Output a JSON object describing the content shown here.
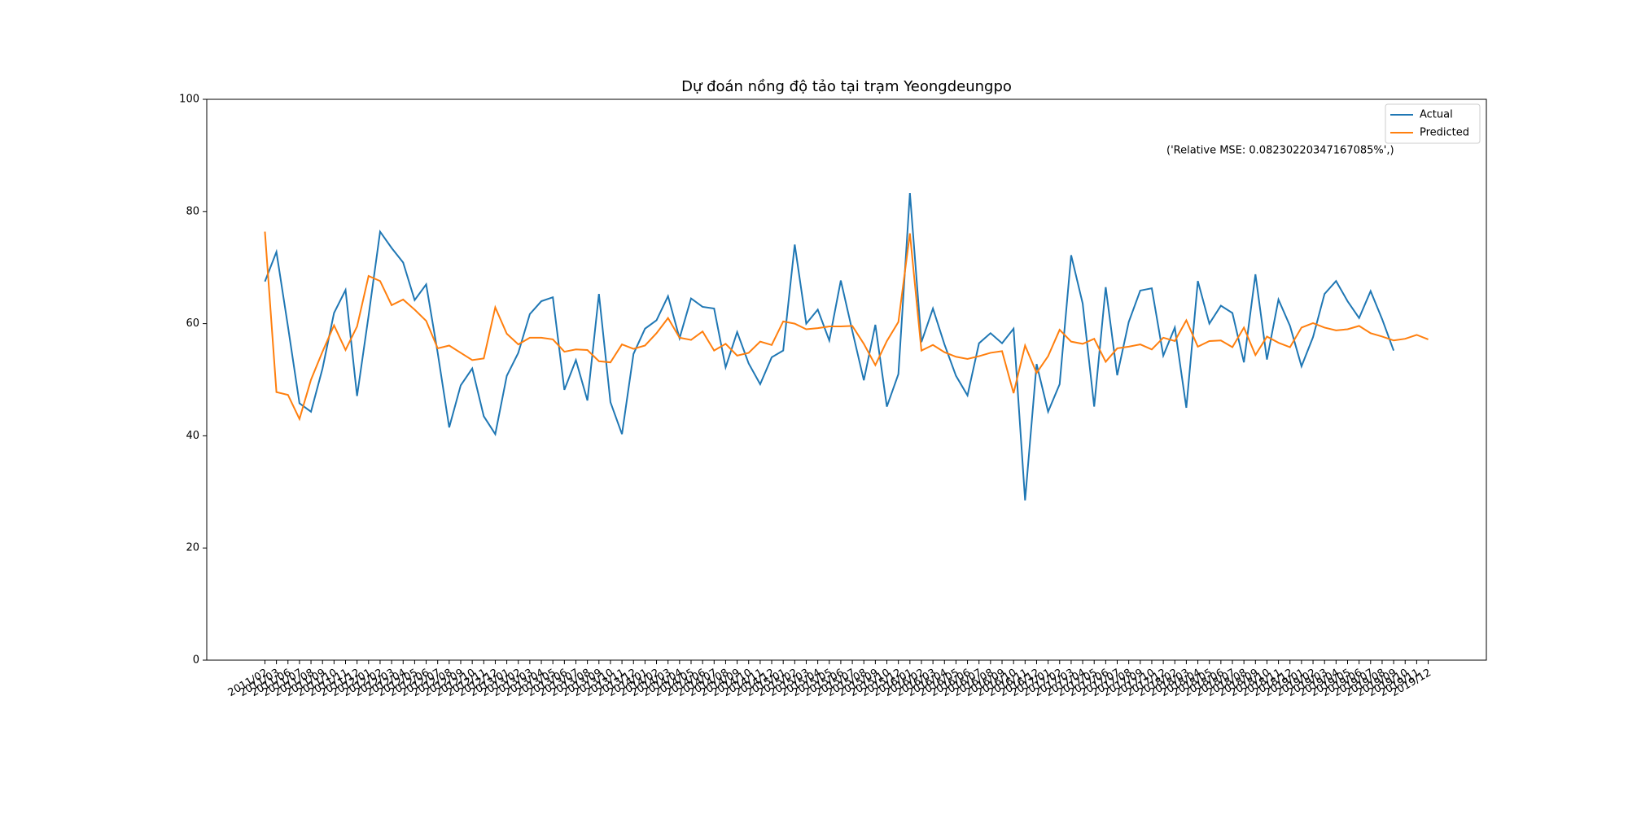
{
  "chart_data": {
    "type": "line",
    "title": "Dự đoán nồng độ tảo tại trạm Yeongdeungpo",
    "annotation": "('Relative MSE: 0.08230220347167085%',)",
    "categories": [
      "2011/02",
      "2011/03",
      "2011/06",
      "2011/07",
      "2011/08",
      "2011/09",
      "2011/10",
      "2011/11",
      "2011/12",
      "2012/01",
      "2012/02",
      "2012/03",
      "2012/04",
      "2012/05",
      "2012/06",
      "2012/07",
      "2012/08",
      "2012/09",
      "2012/10",
      "2012/11",
      "2012/12",
      "2013/01",
      "2013/02",
      "2013/03",
      "2013/04",
      "2013/05",
      "2013/06",
      "2013/07",
      "2013/08",
      "2013/09",
      "2013/10",
      "2013/11",
      "2013/12",
      "2014/01",
      "2014/02",
      "2014/03",
      "2014/04",
      "2014/05",
      "2014/06",
      "2014/07",
      "2014/08",
      "2014/09",
      "2014/10",
      "2014/11",
      "2014/12",
      "2015/01",
      "2015/02",
      "2015/03",
      "2015/04",
      "2015/05",
      "2015/06",
      "2015/07",
      "2015/08",
      "2015/09",
      "2015/10",
      "2015/12",
      "2016/01",
      "2016/02",
      "2016/03",
      "2016/04",
      "2016/05",
      "2016/06",
      "2016/07",
      "2016/08",
      "2016/09",
      "2016/10",
      "2016/11",
      "2016/12",
      "2017/01",
      "2017/02",
      "2017/03",
      "2017/04",
      "2017/05",
      "2017/06",
      "2017/07",
      "2017/08",
      "2017/09",
      "2017/10",
      "2017/12",
      "2018/02",
      "2018/03",
      "2018/04",
      "2018/05",
      "2018/06",
      "2018/07",
      "2018/08",
      "2018/09",
      "2018/10",
      "2018/11",
      "2018/12",
      "2019/01",
      "2019/02",
      "2019/03",
      "2019/04",
      "2019/05",
      "2019/06",
      "2019/07",
      "2019/08",
      "2019/09",
      "2019/10",
      "2019/11",
      "2019/12"
    ],
    "series": [
      {
        "name": "Actual",
        "color": "#1f77b4",
        "values": [
          67.5,
          72.8,
          59.5,
          45.8,
          44.3,
          52,
          61.9,
          66,
          47.1,
          61.4,
          76.4,
          73.5,
          70.9,
          64.2,
          67,
          54.8,
          41.5,
          49,
          52,
          43.5,
          40.3,
          50.7,
          54.8,
          61.7,
          64,
          64.7,
          48.2,
          53.5,
          46.3,
          65.3,
          46,
          40.3,
          54.6,
          59.1,
          60.6,
          64.9,
          57.4,
          64.5,
          63,
          62.7,
          52.2,
          58.5,
          52.9,
          49.2,
          54,
          55.2,
          74.1,
          60,
          62.5,
          57,
          67.7,
          58.7,
          49.9,
          59.8,
          45.2,
          51,
          83.3,
          56.7,
          62.7,
          56.3,
          50.7,
          47.2,
          56.5,
          58.3,
          56.5,
          59.1,
          28.5,
          52.8,
          44.3,
          49.2,
          72.2,
          63.6,
          45.2,
          66.5,
          50.8,
          60.3,
          65.9,
          66.3,
          54.3,
          59.3,
          45,
          67.6,
          60,
          63.2,
          61.9,
          53.1,
          68.8,
          53.6,
          64.3,
          59.6,
          52.4,
          57.6,
          65.3,
          67.6,
          64,
          61,
          65.8,
          60.8,
          55.2,
          null,
          null,
          null
        ]
      },
      {
        "name": "Predicted",
        "color": "#ff7f0e",
        "values": [
          76.4,
          47.8,
          47.3,
          43,
          50,
          55,
          59.7,
          55.3,
          59.5,
          68.5,
          67.6,
          63.3,
          64.3,
          62.5,
          60.5,
          55.6,
          56.1,
          54.8,
          53.5,
          53.8,
          62.9,
          58.2,
          56.3,
          57.5,
          57.5,
          57.2,
          55,
          55.4,
          55.3,
          53.3,
          53.1,
          56.3,
          55.5,
          56.1,
          58.3,
          61,
          57.5,
          57.1,
          58.6,
          55.2,
          56.4,
          54.3,
          54.8,
          56.8,
          56.2,
          60.4,
          60,
          59,
          59.2,
          59.5,
          59.5,
          59.6,
          56.4,
          52.6,
          56.9,
          60.3,
          76.1,
          55.2,
          56.2,
          54.9,
          54.1,
          53.7,
          54.2,
          54.8,
          55.1,
          47.6,
          56.1,
          51.2,
          54.2,
          58.9,
          56.8,
          56.4,
          57.3,
          53.2,
          55.6,
          55.9,
          56.3,
          55.4,
          57.5,
          56.9,
          60.6,
          55.9,
          56.9,
          57,
          55.8,
          59.3,
          54.4,
          57.7,
          56.6,
          55.8,
          59.3,
          60.1,
          59.3,
          58.8,
          59,
          59.6,
          58.3,
          57.7,
          57,
          57.3,
          58,
          57.2
        ]
      }
    ],
    "ylim": [
      0,
      100
    ],
    "yticks": [
      0,
      20,
      40,
      60,
      80,
      100
    ],
    "legend": "upper right",
    "grid": false
  }
}
